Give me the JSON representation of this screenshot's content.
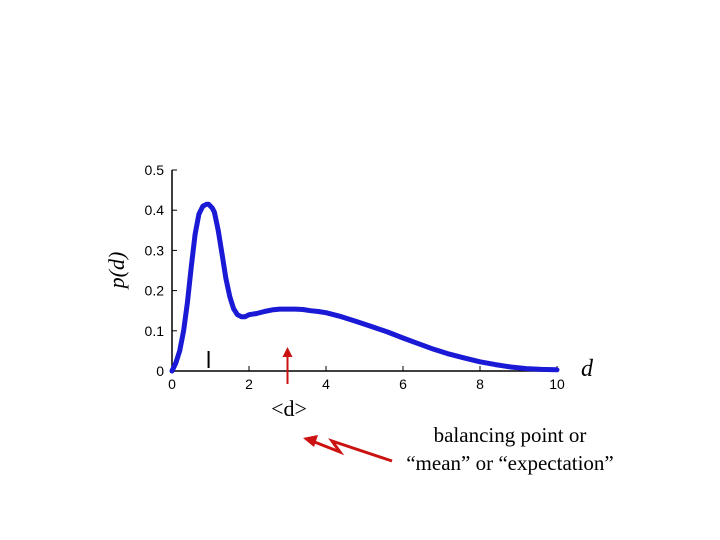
{
  "chart_data": {
    "type": "line",
    "ylabel": "p(d)",
    "xlabel": "d",
    "xlim": [
      0,
      10
    ],
    "ylim": [
      0,
      0.5
    ],
    "xticks": [
      "0",
      "2",
      "4",
      "6",
      "8",
      "10"
    ],
    "yticks": [
      "0",
      "0.1",
      "0.2",
      "0.3",
      "0.4",
      "0.5"
    ],
    "grid": false,
    "series": [
      {
        "color": "#1a1ad6",
        "x": [
          0,
          0.1,
          0.2,
          0.3,
          0.4,
          0.5,
          0.6,
          0.7,
          0.8,
          0.9,
          0.95,
          1.0,
          1.05,
          1.1,
          1.2,
          1.3,
          1.4,
          1.5,
          1.6,
          1.7,
          1.8,
          1.9,
          2.0,
          2.2,
          2.4,
          2.6,
          2.8,
          3.0,
          3.2,
          3.4,
          3.6,
          3.8,
          4.0,
          4.4,
          4.8,
          5.2,
          5.6,
          6.0,
          6.4,
          6.8,
          7.2,
          7.6,
          8.0,
          8.4,
          8.8,
          9.2,
          9.6,
          10.0
        ],
        "y": [
          0.0,
          0.02,
          0.05,
          0.1,
          0.17,
          0.26,
          0.34,
          0.39,
          0.41,
          0.415,
          0.415,
          0.41,
          0.405,
          0.395,
          0.35,
          0.29,
          0.23,
          0.185,
          0.155,
          0.14,
          0.135,
          0.135,
          0.14,
          0.143,
          0.148,
          0.152,
          0.154,
          0.154,
          0.154,
          0.153,
          0.15,
          0.148,
          0.145,
          0.135,
          0.123,
          0.11,
          0.097,
          0.082,
          0.068,
          0.054,
          0.042,
          0.032,
          0.023,
          0.016,
          0.01,
          0.006,
          0.004,
          0.003
        ]
      }
    ],
    "annotations": [
      {
        "text": "<d>",
        "x": 3.0
      },
      {
        "text": "balancing point or"
      },
      {
        "text": "“mean” or “expectation”"
      }
    ],
    "markers": [
      {
        "x": 0.95,
        "color": "#000000"
      },
      {
        "x": 3.0,
        "color": "#cc1111"
      }
    ]
  }
}
